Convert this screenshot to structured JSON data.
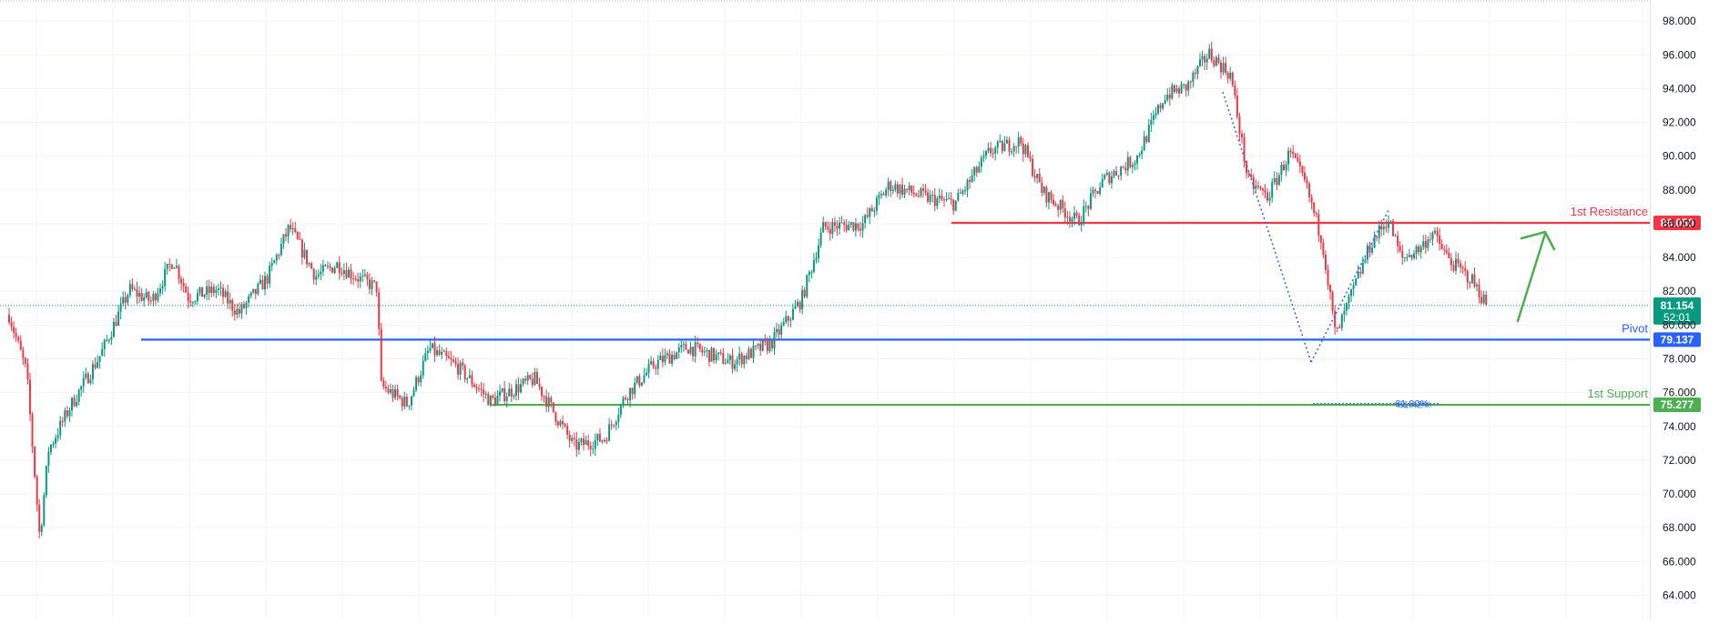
{
  "chart_data": {
    "type": "candlestick",
    "title": "",
    "xlabel": "",
    "ylabel": "",
    "ylim": [
      63,
      98.6
    ],
    "yticks": [
      64,
      66,
      68,
      70,
      72,
      74,
      76,
      78,
      80,
      82,
      84,
      86,
      88,
      90,
      92,
      94,
      96,
      98
    ],
    "ytick_labels": [
      "64.000",
      "66.000",
      "68.000",
      "70.000",
      "72.000",
      "74.000",
      "76.000",
      "78.000",
      "80.000",
      "82.000",
      "84.000",
      "86.000",
      "88.000",
      "90.000",
      "92.000",
      "94.000",
      "96.000",
      "98.000"
    ],
    "grid": true,
    "candle_count": 640,
    "colors": {
      "up": "#089981",
      "down": "#f23645",
      "resistance": "#f23645",
      "pivot": "#2962ff",
      "support": "#4caf50",
      "grid": "#f0f3fa"
    },
    "price_path": [
      [
        0,
        80.6
      ],
      [
        8,
        77.2
      ],
      [
        14,
        67.4
      ],
      [
        18,
        72.6
      ],
      [
        28,
        75.2
      ],
      [
        42,
        78.3
      ],
      [
        55,
        82.1
      ],
      [
        65,
        81.4
      ],
      [
        75,
        83.9
      ],
      [
        82,
        81.6
      ],
      [
        95,
        82.1
      ],
      [
        105,
        80.7
      ],
      [
        118,
        82.8
      ],
      [
        128,
        85.8
      ],
      [
        140,
        82.9
      ],
      [
        150,
        83.6
      ],
      [
        158,
        82.9
      ],
      [
        168,
        82.2
      ],
      [
        170,
        76.4
      ],
      [
        182,
        75.3
      ],
      [
        192,
        78.6
      ],
      [
        205,
        77.5
      ],
      [
        220,
        75.5
      ],
      [
        240,
        76.8
      ],
      [
        258,
        72.8
      ],
      [
        272,
        73.3
      ],
      [
        282,
        75.9
      ],
      [
        295,
        77.7
      ],
      [
        310,
        78.7
      ],
      [
        330,
        77.8
      ],
      [
        348,
        78.9
      ],
      [
        362,
        81.5
      ],
      [
        372,
        85.8
      ],
      [
        390,
        86.0
      ],
      [
        402,
        88.3
      ],
      [
        420,
        87.5
      ],
      [
        432,
        87.2
      ],
      [
        448,
        90.3
      ],
      [
        462,
        90.9
      ],
      [
        472,
        87.9
      ],
      [
        488,
        86.1
      ],
      [
        500,
        88.6
      ],
      [
        515,
        89.9
      ],
      [
        528,
        93.6
      ],
      [
        538,
        94.1
      ],
      [
        548,
        96.1
      ],
      [
        558,
        94.8
      ],
      [
        566,
        88.5
      ],
      [
        575,
        87.6
      ],
      [
        585,
        90.2
      ],
      [
        592,
        88.4
      ],
      [
        600,
        84.9
      ],
      [
        606,
        79.3
      ],
      [
        612,
        81.4
      ],
      [
        622,
        84.8
      ],
      [
        630,
        86.3
      ],
      [
        636,
        83.9
      ],
      [
        645,
        84.6
      ],
      [
        650,
        85.5
      ],
      [
        658,
        83.8
      ],
      [
        668,
        82.7
      ],
      [
        675,
        81.2
      ]
    ],
    "levels": [
      {
        "name": "1st Resistance",
        "value": 86.05,
        "value_label": "86.050"
      },
      {
        "name": "Pivot",
        "value": 79.137,
        "value_label": "79.137"
      },
      {
        "name": "1st Support",
        "value": 75.277,
        "value_label": "75.277"
      }
    ],
    "current_price": {
      "value": 81.154,
      "value_label": "81.154",
      "countdown": "52:01"
    },
    "fib_label": "61.80%",
    "fib_label_extra": "61.42%",
    "annotations": [
      "bullish-arrow"
    ]
  }
}
